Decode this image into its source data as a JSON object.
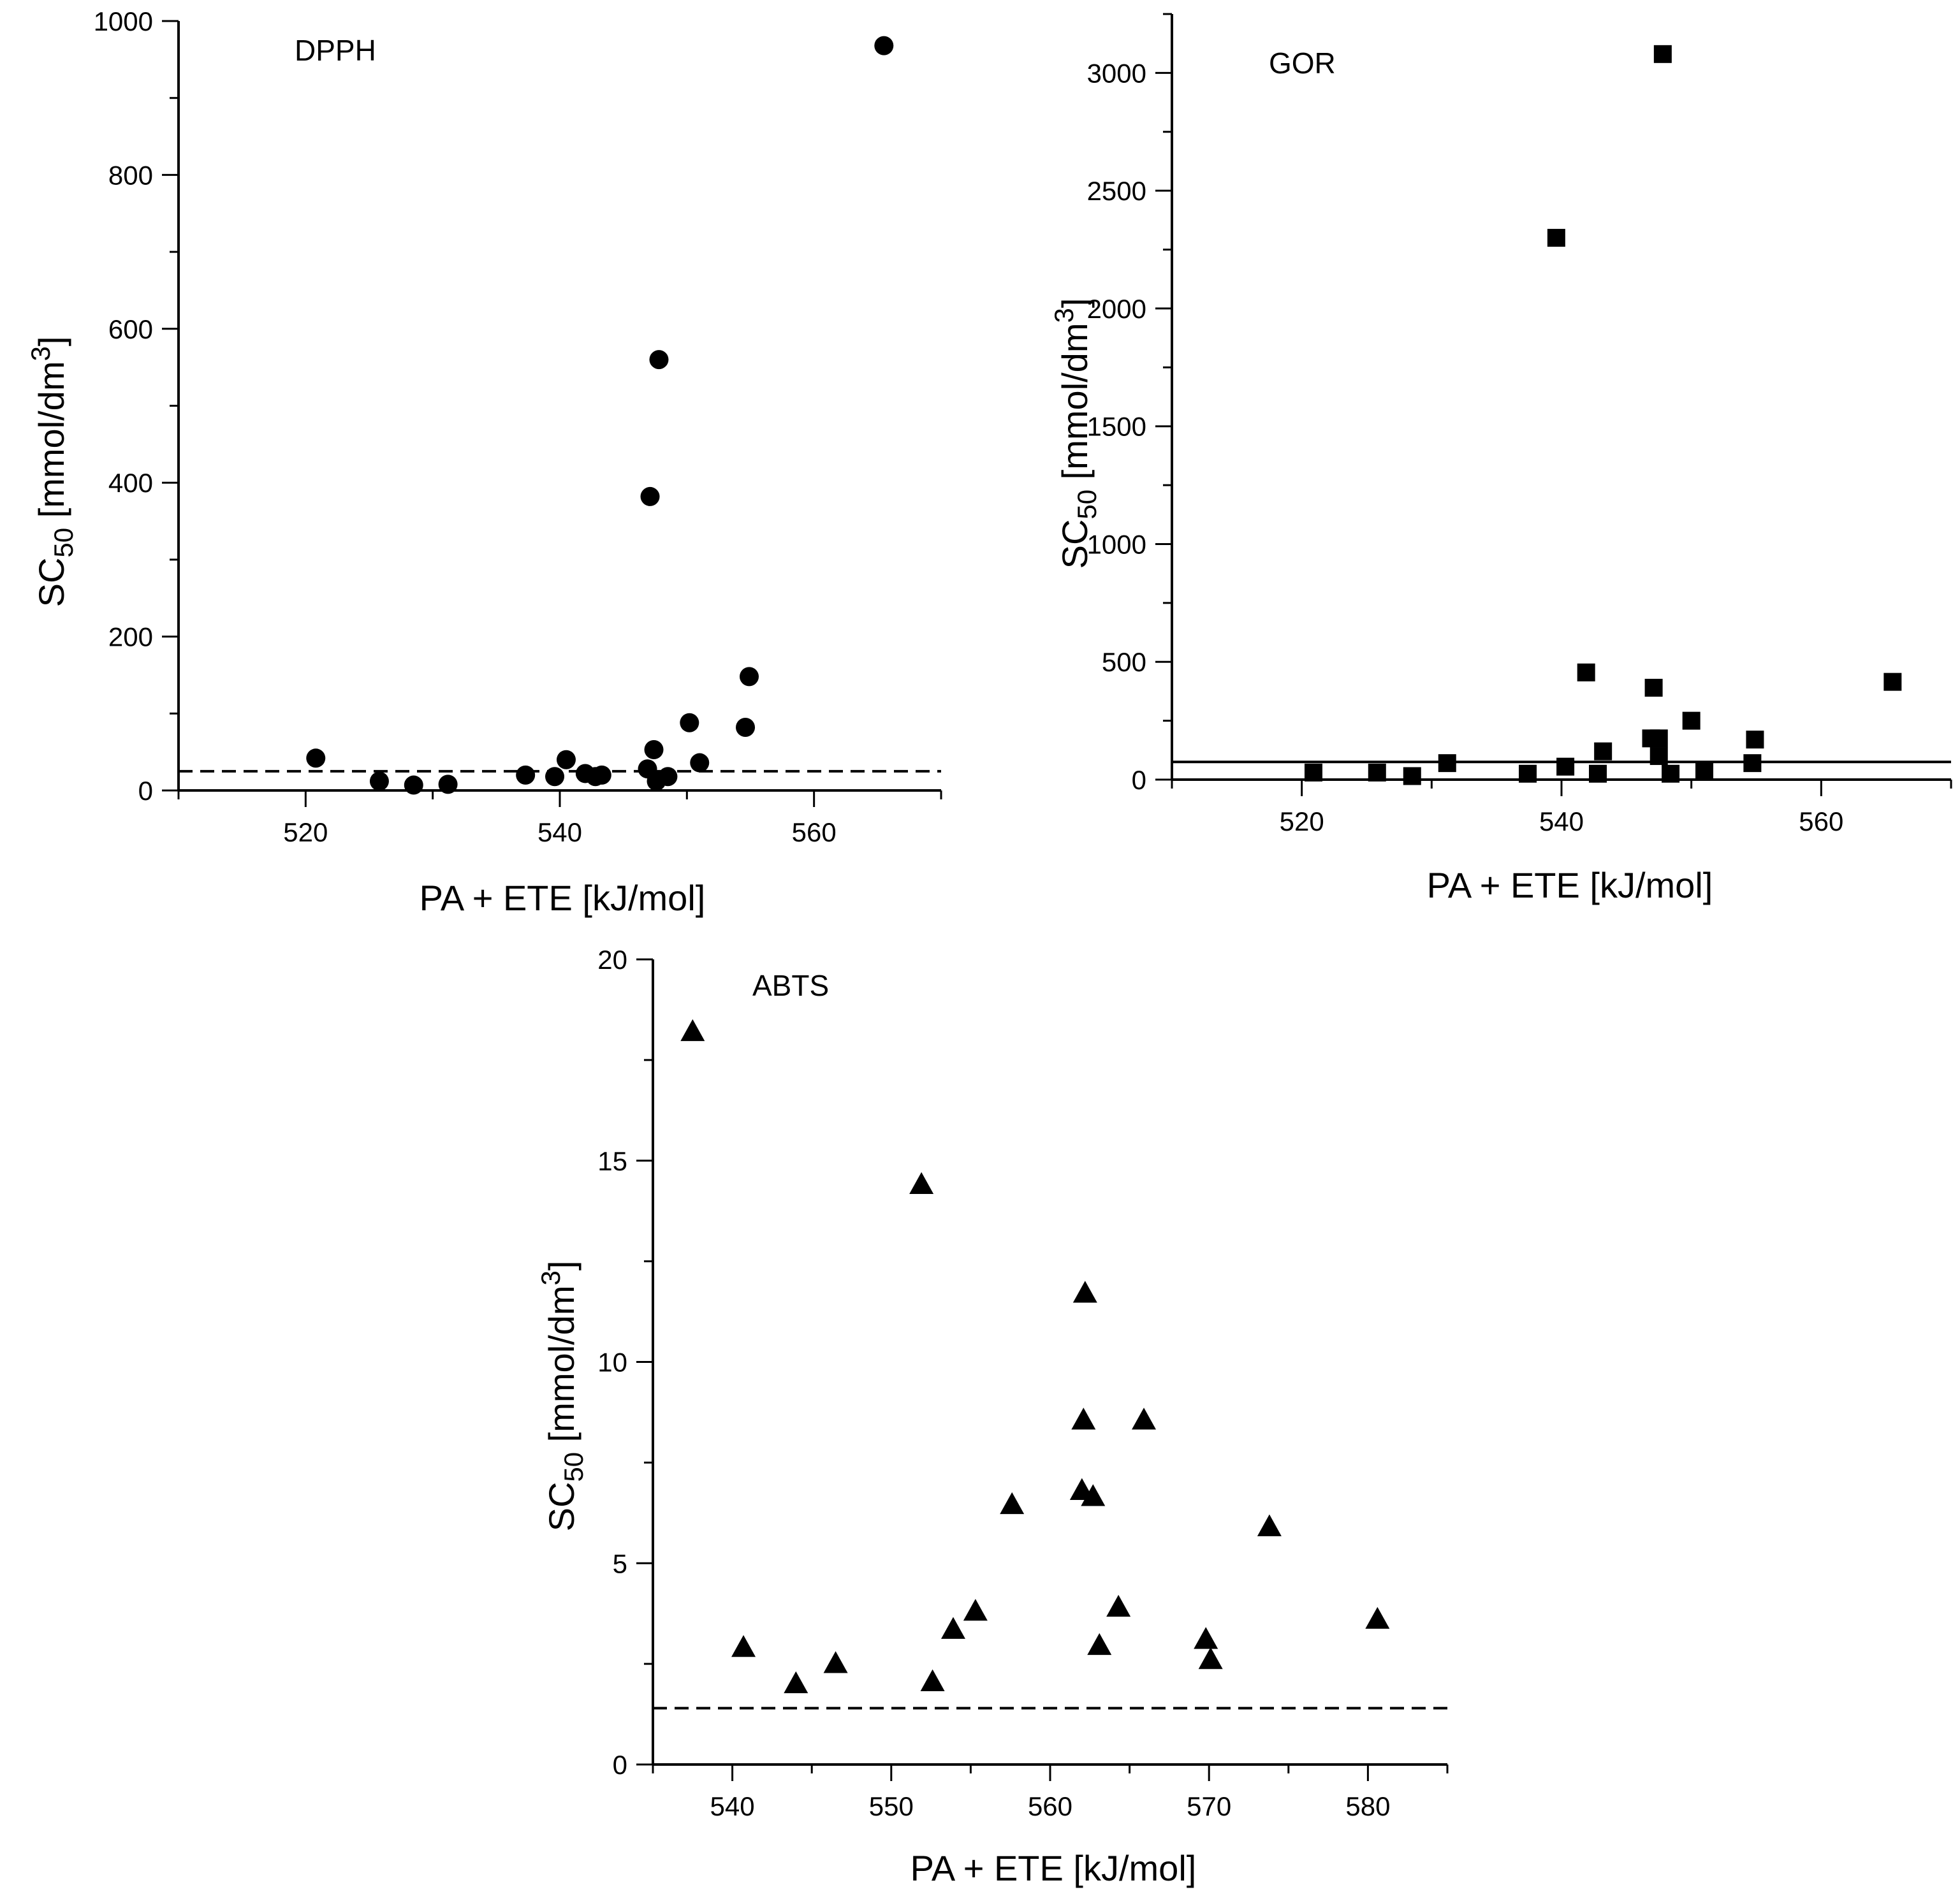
{
  "chart_data": [
    {
      "type": "scatter",
      "title": "DPPH",
      "marker": "circle",
      "xlabel": "PA + ETE [kJ/mol]",
      "ylabel_parts": [
        "SC",
        "50",
        " [mmol/dm",
        "3",
        "]"
      ],
      "xlim": [
        510,
        570
      ],
      "ylim": [
        0,
        1000
      ],
      "xticks": [
        520,
        540,
        560
      ],
      "yticks": [
        0,
        200,
        400,
        600,
        800,
        1000
      ],
      "reference_line": {
        "y": 25,
        "style": "dashed"
      },
      "points": [
        {
          "x": 520.8,
          "y": 42
        },
        {
          "x": 525.8,
          "y": 12
        },
        {
          "x": 528.5,
          "y": 7
        },
        {
          "x": 531.2,
          "y": 8
        },
        {
          "x": 537.3,
          "y": 20
        },
        {
          "x": 539.6,
          "y": 18
        },
        {
          "x": 540.5,
          "y": 40
        },
        {
          "x": 542.0,
          "y": 22
        },
        {
          "x": 542.8,
          "y": 18
        },
        {
          "x": 543.3,
          "y": 20
        },
        {
          "x": 546.9,
          "y": 28
        },
        {
          "x": 547.1,
          "y": 382
        },
        {
          "x": 547.4,
          "y": 53
        },
        {
          "x": 547.6,
          "y": 12
        },
        {
          "x": 547.8,
          "y": 560
        },
        {
          "x": 548.5,
          "y": 18
        },
        {
          "x": 550.2,
          "y": 88
        },
        {
          "x": 551.0,
          "y": 36
        },
        {
          "x": 554.6,
          "y": 82
        },
        {
          "x": 554.9,
          "y": 148
        },
        {
          "x": 565.5,
          "y": 968
        }
      ]
    },
    {
      "type": "scatter",
      "title": "GOR",
      "marker": "square",
      "xlabel": "PA + ETE [kJ/mol]",
      "ylabel_parts": [
        "SC",
        "50",
        " [mmol/dm",
        "3",
        "]"
      ],
      "xlim": [
        510,
        570
      ],
      "ylim": [
        0,
        3250
      ],
      "xticks": [
        520,
        540,
        560
      ],
      "yticks": [
        0,
        500,
        1000,
        1500,
        2000,
        2500,
        3000
      ],
      "reference_line": {
        "y": 75,
        "style": "solid"
      },
      "points": [
        {
          "x": 520.9,
          "y": 30
        },
        {
          "x": 525.8,
          "y": 30
        },
        {
          "x": 528.5,
          "y": 15
        },
        {
          "x": 531.2,
          "y": 70
        },
        {
          "x": 537.4,
          "y": 25
        },
        {
          "x": 539.6,
          "y": 2300
        },
        {
          "x": 540.3,
          "y": 55
        },
        {
          "x": 541.9,
          "y": 455
        },
        {
          "x": 542.8,
          "y": 25
        },
        {
          "x": 543.2,
          "y": 120
        },
        {
          "x": 546.9,
          "y": 175
        },
        {
          "x": 547.1,
          "y": 390
        },
        {
          "x": 547.5,
          "y": 175
        },
        {
          "x": 547.5,
          "y": 100
        },
        {
          "x": 547.8,
          "y": 3080
        },
        {
          "x": 548.4,
          "y": 25
        },
        {
          "x": 550.0,
          "y": 250
        },
        {
          "x": 551.0,
          "y": 40
        },
        {
          "x": 554.7,
          "y": 70
        },
        {
          "x": 554.9,
          "y": 170
        },
        {
          "x": 565.5,
          "y": 415
        }
      ]
    },
    {
      "type": "scatter",
      "title": "ABTS",
      "marker": "triangle",
      "xlabel": "PA + ETE [kJ/mol]",
      "ylabel_parts": [
        "SC",
        "50",
        " [mmol/dm",
        "3",
        "]"
      ],
      "xlim": [
        535,
        585
      ],
      "ylim": [
        0,
        20
      ],
      "xticks": [
        540,
        550,
        560,
        570,
        580
      ],
      "yticks": [
        0,
        5,
        10,
        15,
        20
      ],
      "reference_line": {
        "y": 1.4,
        "style": "dashed"
      },
      "points": [
        {
          "x": 537.5,
          "y": 18.2
        },
        {
          "x": 540.7,
          "y": 2.9
        },
        {
          "x": 544.0,
          "y": 2.0
        },
        {
          "x": 546.5,
          "y": 2.5
        },
        {
          "x": 551.9,
          "y": 14.4
        },
        {
          "x": 552.6,
          "y": 2.05
        },
        {
          "x": 553.9,
          "y": 3.35
        },
        {
          "x": 555.3,
          "y": 3.8
        },
        {
          "x": 557.6,
          "y": 6.45
        },
        {
          "x": 562.0,
          "y": 6.8
        },
        {
          "x": 562.1,
          "y": 8.55
        },
        {
          "x": 562.2,
          "y": 11.7
        },
        {
          "x": 562.7,
          "y": 6.65
        },
        {
          "x": 563.1,
          "y": 2.95
        },
        {
          "x": 564.3,
          "y": 3.9
        },
        {
          "x": 565.9,
          "y": 8.55
        },
        {
          "x": 569.8,
          "y": 3.1
        },
        {
          "x": 570.1,
          "y": 2.6
        },
        {
          "x": 573.8,
          "y": 5.9
        },
        {
          "x": 580.6,
          "y": 3.6
        }
      ]
    }
  ]
}
